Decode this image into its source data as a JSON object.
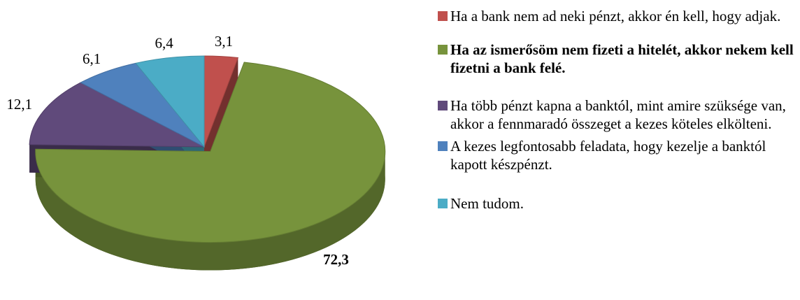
{
  "chart_data": {
    "type": "pie",
    "categories": [
      "Ha a bank nem ad neki pénzt, akkor én kell, hogy adjak.",
      "Ha az ismerősöm nem fizeti a hitelét, akkor nekem kell fizetni a bank felé.",
      "Ha több pénzt kapna a banktól, mint amire szüksége van, akkor a fennmaradó összeget a kezes köteles elkölteni.",
      "A kezes legfontosabb feladata, hogy kezelje a banktól kapott készpénzt.",
      "Nem tudom."
    ],
    "values": [
      3.1,
      72.3,
      12.1,
      6.1,
      6.4
    ],
    "value_labels": [
      "3,1",
      "72,3",
      "12,1",
      "6,1",
      "6,4"
    ],
    "colors": [
      "#c0504d",
      "#77933c",
      "#604a7b",
      "#4f81bd",
      "#4bacc6"
    ],
    "highlight": 1
  }
}
